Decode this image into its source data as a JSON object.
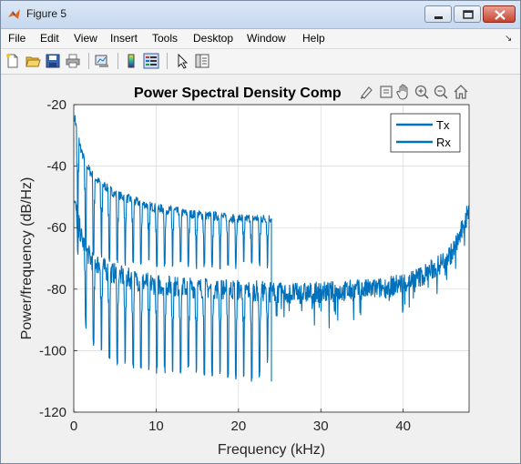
{
  "window": {
    "title": "Figure 5"
  },
  "menu": [
    "File",
    "Edit",
    "View",
    "Insert",
    "Tools",
    "Desktop",
    "Window",
    "Help"
  ],
  "toolbar_icons": [
    "new-figure-icon",
    "open-file-icon",
    "save-icon",
    "print-icon",
    "link-plot-icon",
    "insert-colorbar-icon",
    "insert-legend-icon",
    "pointer-icon",
    "property-inspector-icon"
  ],
  "axes_toolbar_icons": [
    "brush-icon",
    "data-tips-icon",
    "pan-icon",
    "zoom-in-icon",
    "zoom-out-icon",
    "home-icon"
  ],
  "colors": {
    "series": "#0072bd",
    "grid": "#d9d9d9",
    "axes": "#262626"
  },
  "chart_data": {
    "type": "line",
    "title": "Power Spectral Density Comp",
    "xlabel": "Frequency (kHz)",
    "ylabel": "Power/frequency (dB/Hz)",
    "xlim": [
      0,
      48
    ],
    "ylim": [
      -120,
      -20
    ],
    "xticks": [
      "0",
      "10",
      "20",
      "30",
      "40"
    ],
    "yticks": [
      "-20",
      "-40",
      "-60",
      "-80",
      "-100",
      "-120"
    ],
    "grid": true,
    "legend_position": "top-right",
    "series": [
      {
        "name": "Tx",
        "x": [
          0.1,
          0.5,
          1,
          2,
          3,
          4,
          5,
          6,
          8,
          10,
          12,
          14,
          16,
          18,
          20,
          22,
          23,
          24
        ],
        "y": [
          -24,
          -30,
          -36,
          -42,
          -45,
          -47,
          -49,
          -50,
          -52,
          -53.5,
          -54.5,
          -55.5,
          -56,
          -56.5,
          -57,
          -57,
          -57,
          -57
        ],
        "dip_floor": [
          -55,
          -62,
          -66,
          -68,
          -69,
          -70,
          -70,
          -71,
          -71,
          -72,
          -72,
          -72,
          -72,
          -72,
          -72,
          -72,
          -72,
          -72
        ]
      },
      {
        "name": "Rx",
        "x": [
          0.1,
          1,
          2,
          4,
          6,
          8,
          10,
          14,
          18,
          22,
          26,
          30,
          34,
          38,
          40,
          42,
          44,
          46,
          47,
          48
        ],
        "y": [
          -52,
          -64,
          -70,
          -74,
          -76,
          -77.5,
          -78.5,
          -79.5,
          -80,
          -80.5,
          -81.5,
          -81,
          -80.5,
          -79.5,
          -78,
          -76,
          -73,
          -68,
          -62,
          -54
        ],
        "dip_floor": [
          -56,
          -86,
          -97,
          -101,
          -104,
          -105,
          -106,
          -106,
          -107,
          -110,
          -90,
          -92,
          -91,
          -90,
          -89,
          -87,
          -85,
          -80,
          -74,
          -60
        ]
      }
    ]
  }
}
